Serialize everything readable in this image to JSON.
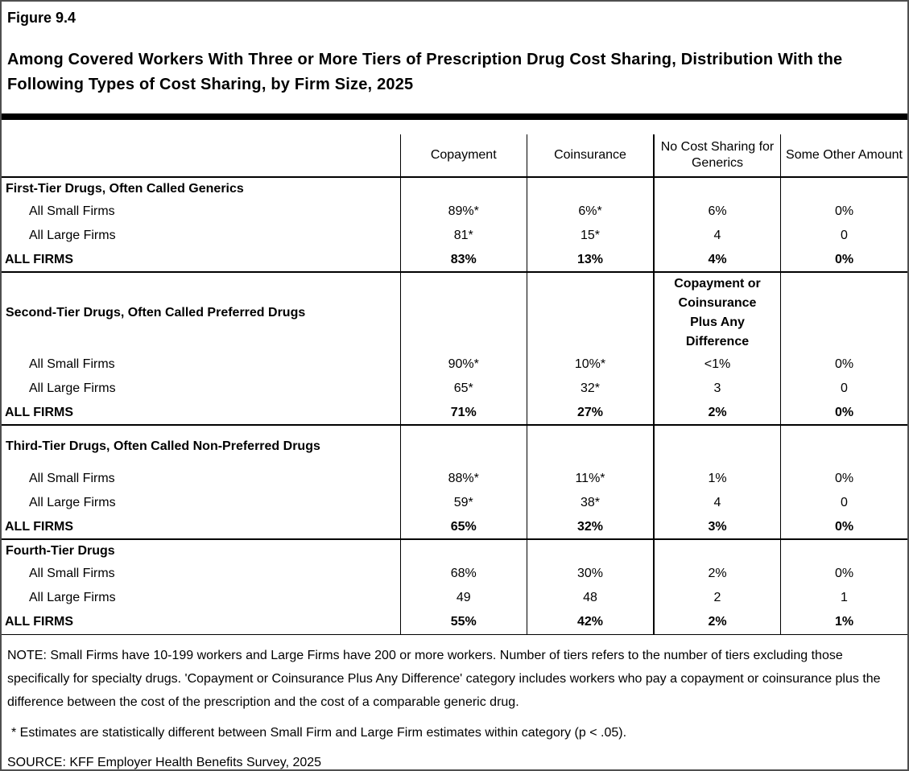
{
  "figure": {
    "label": "Figure 9.4",
    "title": "Among Covered Workers With Three or More Tiers of Prescription Drug Cost Sharing, Distribution With the Following Types of Cost Sharing, by Firm Size, 2025"
  },
  "table": {
    "columns": [
      "Copayment",
      "Coinsurance",
      "No Cost Sharing for Generics",
      "Some Other Amount"
    ],
    "sections": [
      {
        "label": "First-Tier Drugs, Often Called Generics",
        "rows": [
          {
            "label": "All Small Firms",
            "values": [
              "89%*",
              "6%*",
              "6%",
              "0%"
            ]
          },
          {
            "label": "All Large Firms",
            "values": [
              "81*",
              "15*",
              "4",
              "0"
            ]
          },
          {
            "label": "ALL FIRMS",
            "values": [
              "83%",
              "13%",
              "4%",
              "0%"
            ]
          }
        ]
      },
      {
        "label": "Second-Tier Drugs, Often Called Preferred Drugs",
        "subheader": "Copayment or Coinsurance Plus Any Difference",
        "subheader_lines": [
          "Copayment or",
          "Coinsurance",
          "Plus Any",
          "Difference"
        ],
        "rows": [
          {
            "label": "All Small Firms",
            "values": [
              "90%*",
              "10%*",
              "<1%",
              "0%"
            ]
          },
          {
            "label": "All Large Firms",
            "values": [
              "65*",
              "32*",
              "3",
              "0"
            ]
          },
          {
            "label": "ALL FIRMS",
            "values": [
              "71%",
              "27%",
              "2%",
              "0%"
            ]
          }
        ]
      },
      {
        "label": "Third-Tier Drugs, Often Called Non-Preferred Drugs",
        "rows": [
          {
            "label": "All Small Firms",
            "values": [
              "88%*",
              "11%*",
              "1%",
              "0%"
            ]
          },
          {
            "label": "All Large Firms",
            "values": [
              "59*",
              "38*",
              "4",
              "0"
            ]
          },
          {
            "label": "ALL FIRMS",
            "values": [
              "65%",
              "32%",
              "3%",
              "0%"
            ]
          }
        ]
      },
      {
        "label": "Fourth-Tier Drugs",
        "rows": [
          {
            "label": "All Small Firms",
            "values": [
              "68%",
              "30%",
              "2%",
              "0%"
            ]
          },
          {
            "label": "All Large Firms",
            "values": [
              "49",
              "48",
              "2",
              "1"
            ]
          },
          {
            "label": "ALL FIRMS",
            "values": [
              "55%",
              "42%",
              "2%",
              "1%"
            ]
          }
        ]
      }
    ]
  },
  "notes": {
    "note": "NOTE: Small Firms have 10-199 workers and Large Firms have 200 or more workers. Number of tiers refers to the number of tiers excluding those specifically for specialty drugs. 'Copayment or Coinsurance Plus Any Difference' category includes workers who pay a copayment or coinsurance plus the difference between the cost of the prescription and the cost of a comparable generic drug.",
    "asterisk": "* Estimates are statistically different between Small Firm and Large Firm estimates within category (p < .05).",
    "source": "SOURCE: KFF Employer Health Benefits Survey, 2025"
  }
}
